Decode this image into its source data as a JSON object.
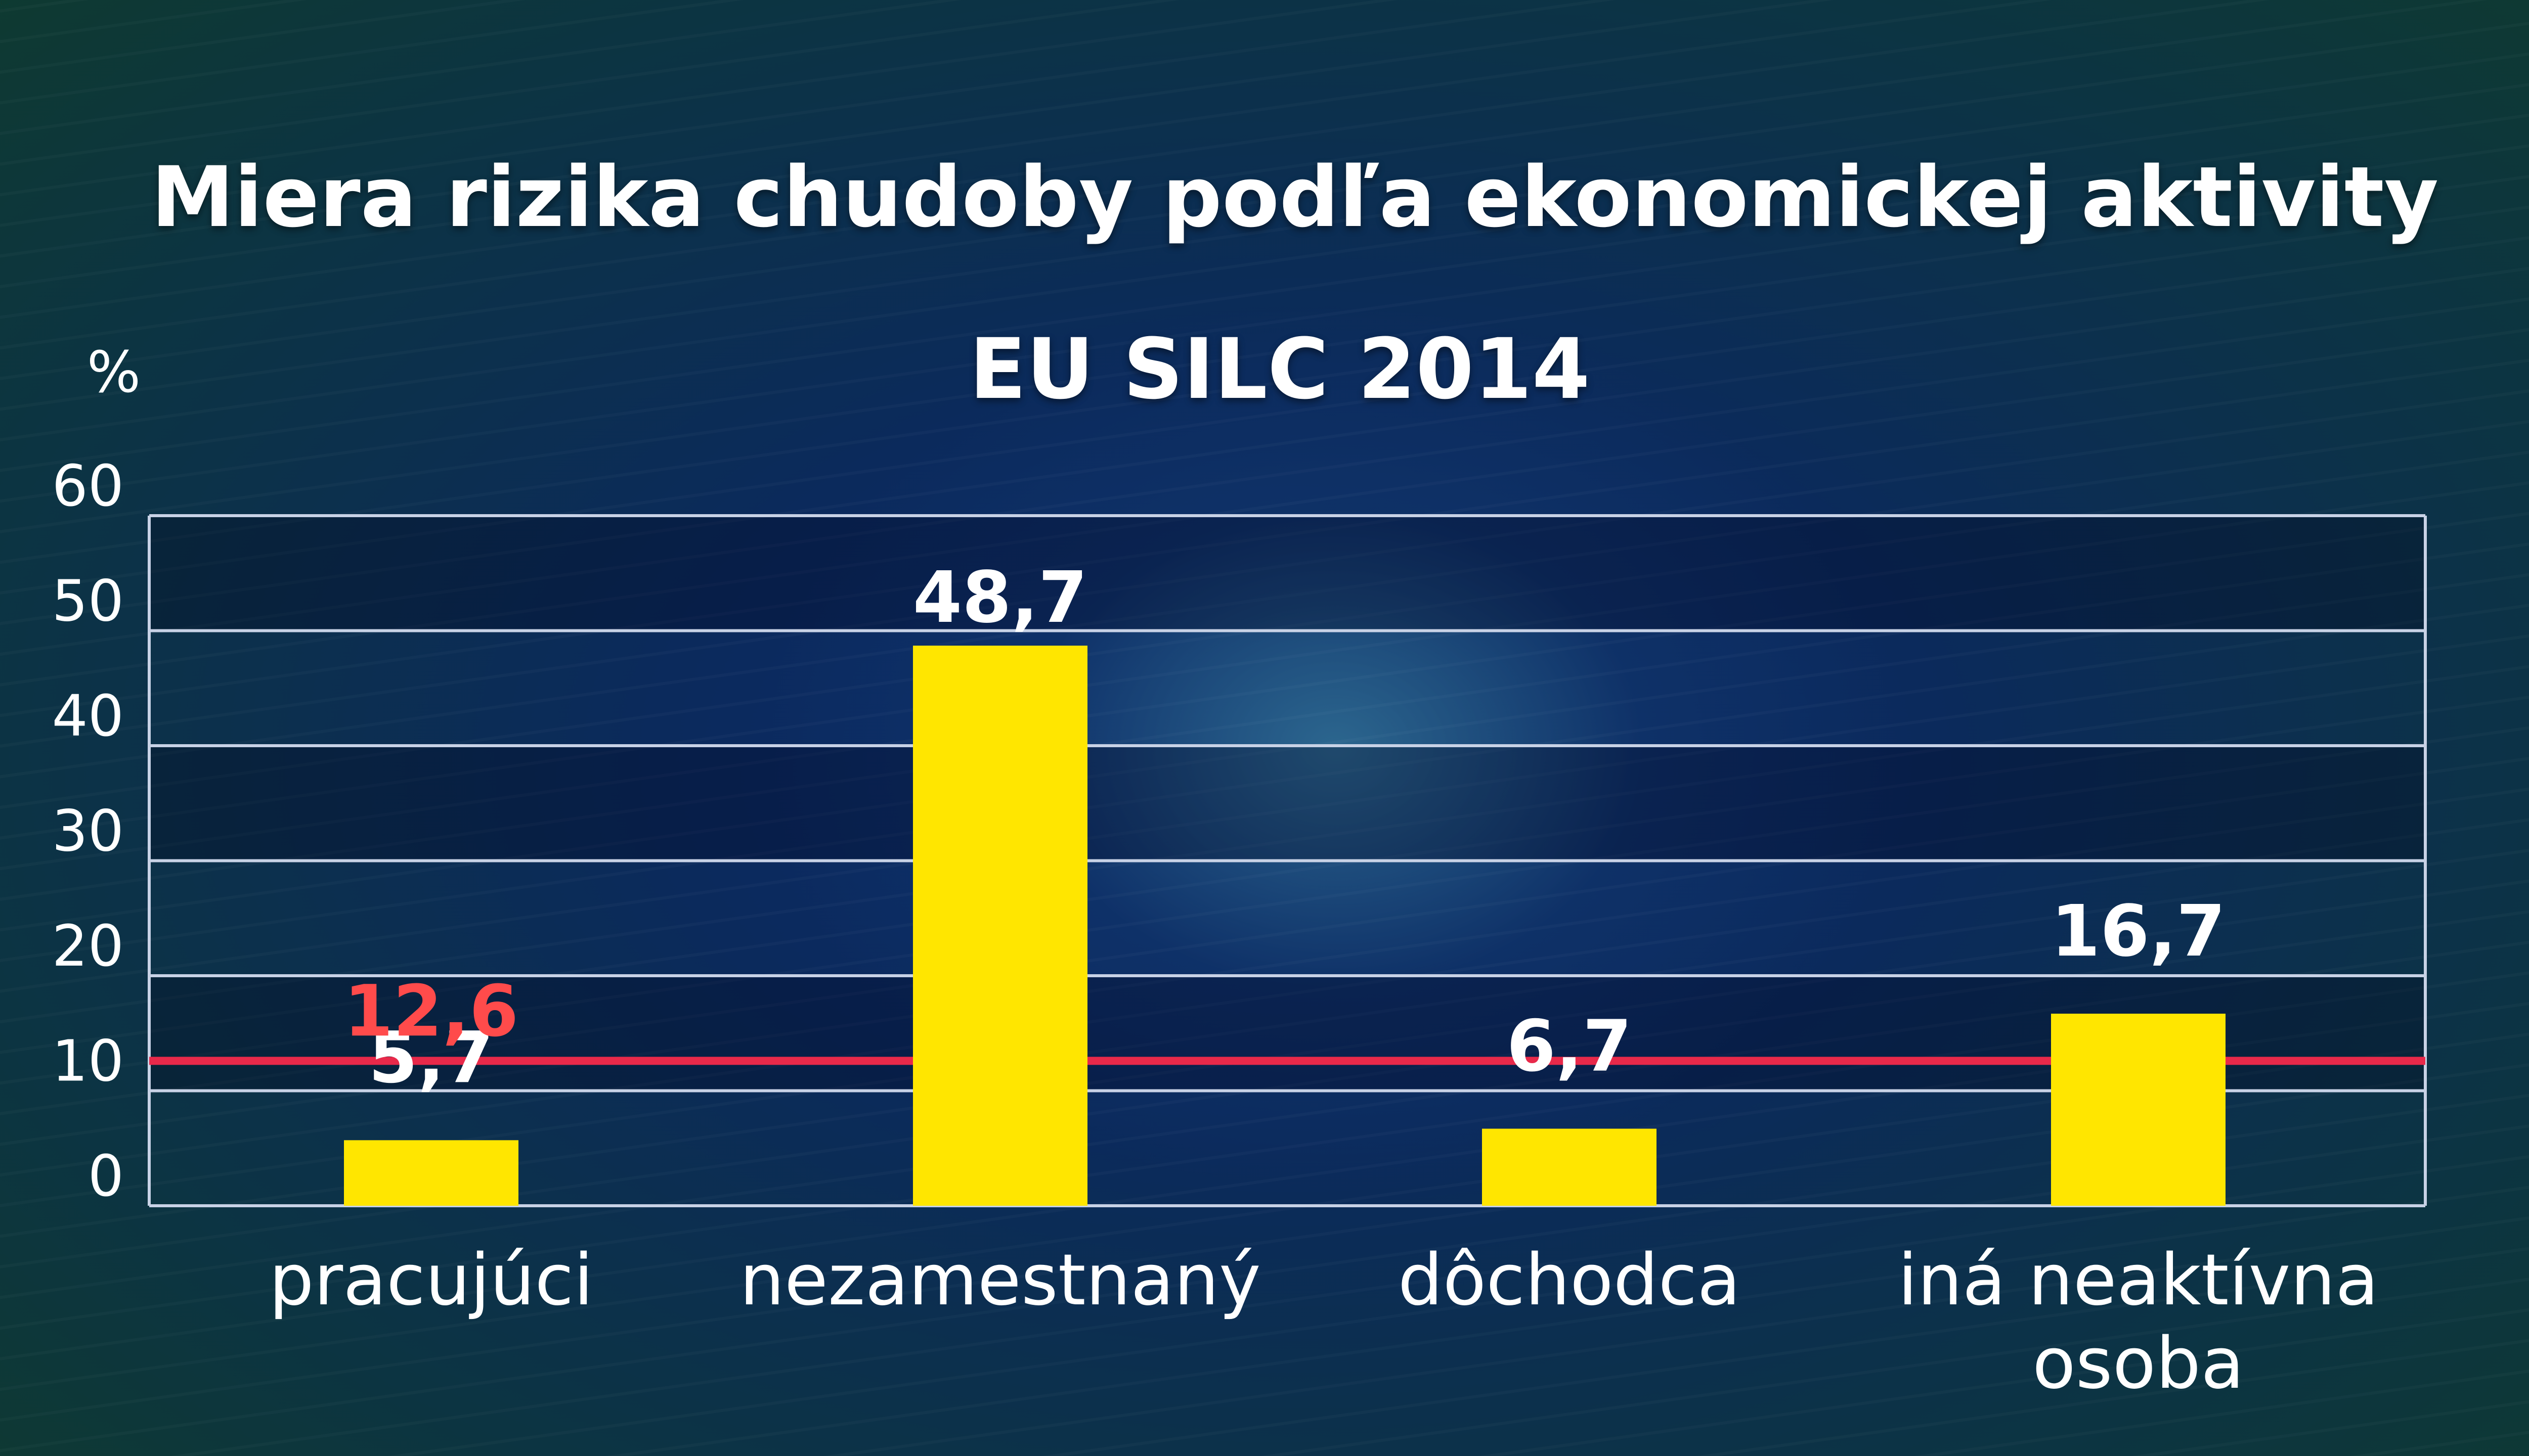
{
  "colors": {
    "bar": "#ffe600",
    "grid": "#c8d2e6",
    "reference_line": "#e8294a",
    "reference_label": "#ff4b4b",
    "text": "#ffffff"
  },
  "chart_data": {
    "type": "bar",
    "title": "Miera rizika chudoby podľa ekonomickej aktivity",
    "subtitle": "EU SILC 2014",
    "ylabel": "%",
    "ylim": [
      0,
      60
    ],
    "yticks": [
      0,
      10,
      20,
      30,
      40,
      50,
      60
    ],
    "grid": true,
    "categories": [
      [
        "pracujúci"
      ],
      [
        "nezamestnaný"
      ],
      [
        "dôchodca"
      ],
      [
        "iná neaktívna",
        "osoba"
      ]
    ],
    "values": [
      5.7,
      48.7,
      6.7,
      16.7
    ],
    "value_labels": [
      "5,7",
      "48,7",
      "6,7",
      "16,7"
    ],
    "reference_line": {
      "value": 12.6,
      "label": "12,6"
    }
  }
}
